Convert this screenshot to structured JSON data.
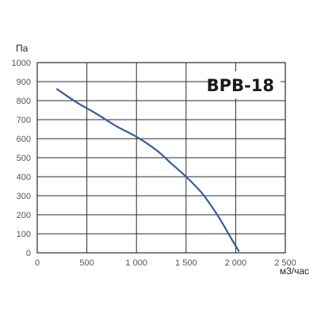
{
  "chart_data": {
    "type": "line",
    "title": "BPB-18",
    "xlabel": "м3/час",
    "ylabel": "Па",
    "xlim": [
      0,
      2500
    ],
    "ylim": [
      0,
      1000
    ],
    "x_ticks": [
      {
        "value": 0,
        "label": "0"
      },
      {
        "value": 500,
        "label": "500"
      },
      {
        "value": 1000,
        "label": "1 000"
      },
      {
        "value": 1500,
        "label": "1 500"
      },
      {
        "value": 2000,
        "label": "2 000"
      },
      {
        "value": 2500,
        "label": "2 500"
      }
    ],
    "y_ticks": [
      {
        "value": 0,
        "label": "0"
      },
      {
        "value": 100,
        "label": "100"
      },
      {
        "value": 200,
        "label": "200"
      },
      {
        "value": 300,
        "label": "300"
      },
      {
        "value": 400,
        "label": "400"
      },
      {
        "value": 500,
        "label": "500"
      },
      {
        "value": 600,
        "label": "600"
      },
      {
        "value": 700,
        "label": "700"
      },
      {
        "value": 800,
        "label": "800"
      },
      {
        "value": 900,
        "label": "900"
      },
      {
        "value": 1000,
        "label": "1000"
      }
    ],
    "grid": true,
    "line_color": "#3a5a9a",
    "series": [
      {
        "x": [
          200,
          400,
          600,
          800,
          1000,
          1200,
          1350,
          1500,
          1650,
          1750,
          1850,
          1950,
          2030
        ],
        "values": [
          860,
          790,
          730,
          665,
          610,
          540,
          470,
          400,
          320,
          250,
          170,
          80,
          10
        ]
      }
    ]
  }
}
